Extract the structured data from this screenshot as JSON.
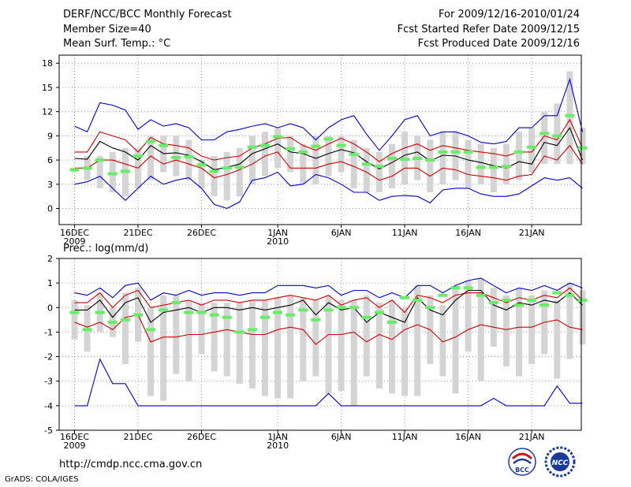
{
  "header": {
    "title": "DERF/NCC/BCC Monthly Forecast",
    "member_size": "Member Size=40",
    "variable": "Mean Surf. Temp.: °C",
    "fcst_period": "For 2009/12/16-2010/01/24",
    "fcst_started": "Fcst Started Refer Date 2009/12/15",
    "fcst_produced": "Fcst Produced Date 2009/12/16"
  },
  "footer": {
    "url": "http://cmdp.ncc.cma.gov.cn",
    "grads": "GrADS: COLA/IGES",
    "logo_bcc": "BCC",
    "logo_ncc": "NCC"
  },
  "colors": {
    "mean": "#000000",
    "upper_lower": "#cc0000",
    "extreme": "#0000cc",
    "range_bar": "#d4d4d4",
    "marker": "#66ee66"
  },
  "chart_data": [
    {
      "type": "line",
      "title": "Mean Surf. Temp.: °C",
      "ylim": [
        -2,
        19
      ],
      "yticks": [
        0,
        3,
        6,
        9,
        12,
        15,
        18
      ],
      "grid": true,
      "xtick_labels": [
        {
          "day": 1,
          "label": "16DEC",
          "sub": "2009"
        },
        {
          "day": 6,
          "label": "21DEC",
          "sub": ""
        },
        {
          "day": 11,
          "label": "26DEC",
          "sub": ""
        },
        {
          "day": 17,
          "label": "1JAN",
          "sub": "2010"
        },
        {
          "day": 22,
          "label": "6JAN",
          "sub": ""
        },
        {
          "day": 27,
          "label": "11JAN",
          "sub": ""
        },
        {
          "day": 32,
          "label": "16JAN",
          "sub": ""
        },
        {
          "day": 37,
          "label": "21JAN",
          "sub": ""
        }
      ],
      "series": [
        {
          "name": "max",
          "values": [
            10.2,
            9.5,
            13.1,
            12.8,
            12.2,
            9.8,
            11.0,
            10.2,
            10.5,
            10.0,
            8.5,
            8.5,
            9.5,
            9.8,
            10.2,
            10.5,
            10.0,
            10.5,
            10.0,
            8.5,
            10.0,
            11.0,
            11.5,
            9.2,
            7.2,
            9.0,
            11.0,
            11.5,
            9.0,
            9.5,
            9.5,
            9.0,
            8.2,
            8.0,
            8.3,
            10.0,
            10.0,
            11.5,
            11.5,
            16.0,
            9.5
          ]
        },
        {
          "name": "upper",
          "values": [
            7.0,
            7.0,
            9.5,
            9.0,
            8.5,
            7.0,
            8.8,
            8.0,
            7.8,
            7.5,
            6.5,
            6.0,
            6.3,
            6.5,
            7.5,
            8.0,
            8.7,
            8.8,
            7.8,
            7.2,
            8.0,
            8.7,
            8.0,
            7.0,
            5.8,
            6.8,
            7.5,
            8.0,
            7.2,
            7.8,
            7.5,
            7.2,
            7.0,
            6.8,
            6.5,
            7.0,
            7.0,
            9.0,
            8.5,
            11.0,
            7.5
          ]
        },
        {
          "name": "mean",
          "values": [
            6.2,
            6.1,
            8.3,
            7.5,
            7.0,
            6.0,
            7.8,
            6.8,
            6.9,
            6.6,
            5.8,
            4.8,
            5.1,
            5.5,
            6.8,
            7.4,
            8.0,
            7.0,
            6.8,
            6.2,
            6.8,
            7.3,
            6.9,
            5.8,
            4.9,
            5.7,
            6.6,
            7.0,
            5.9,
            6.6,
            6.5,
            6.0,
            5.7,
            5.3,
            5.0,
            5.8,
            5.5,
            8.2,
            7.8,
            10.0,
            6.0
          ]
        },
        {
          "name": "lower",
          "values": [
            5.0,
            5.0,
            6.0,
            6.0,
            5.5,
            5.0,
            6.5,
            5.5,
            6.0,
            5.5,
            5.0,
            3.8,
            4.2,
            4.8,
            5.5,
            6.5,
            7.0,
            5.0,
            5.0,
            5.0,
            5.5,
            5.8,
            5.2,
            4.5,
            3.5,
            4.0,
            5.0,
            5.0,
            4.0,
            5.0,
            4.8,
            4.2,
            4.0,
            3.8,
            3.5,
            4.0,
            4.2,
            6.5,
            6.0,
            7.8,
            5.5
          ]
        },
        {
          "name": "min",
          "values": [
            3.0,
            3.3,
            4.0,
            2.5,
            1.0,
            2.5,
            4.0,
            3.0,
            3.5,
            3.8,
            2.5,
            0.5,
            0.0,
            0.8,
            3.5,
            3.8,
            4.5,
            2.8,
            3.0,
            4.2,
            3.8,
            3.0,
            2.0,
            2.0,
            1.0,
            1.5,
            1.6,
            1.5,
            0.7,
            2.3,
            2.5,
            2.5,
            1.8,
            1.5,
            1.5,
            1.8,
            2.8,
            3.8,
            3.5,
            3.8,
            2.5
          ]
        },
        {
          "name": "range_bar_top",
          "values": [
            5.0,
            6.5,
            6.5,
            7.0,
            7.5,
            7.5,
            9.0,
            9.0,
            9.0,
            8.5,
            6.0,
            6.5,
            7.0,
            7.5,
            9.0,
            9.5,
            10.0,
            9.0,
            8.0,
            9.0,
            9.0,
            9.0,
            8.5,
            7.5,
            7.0,
            8.0,
            9.5,
            9.0,
            8.5,
            9.5,
            9.5,
            8.5,
            8.0,
            7.5,
            8.0,
            9.5,
            10.0,
            12.0,
            13.0,
            17.0,
            10.0
          ]
        },
        {
          "name": "range_bar_bottom",
          "values": [
            4.5,
            3.5,
            2.5,
            2.0,
            1.5,
            2.5,
            3.5,
            4.5,
            4.0,
            3.5,
            2.5,
            1.5,
            1.0,
            1.5,
            3.0,
            4.0,
            5.0,
            4.5,
            3.0,
            3.0,
            4.0,
            4.5,
            2.5,
            2.0,
            2.0,
            2.5,
            3.0,
            3.5,
            2.0,
            3.0,
            3.5,
            2.5,
            3.0,
            2.0,
            3.0,
            3.5,
            4.5,
            5.5,
            5.5,
            5.5,
            5.5
          ]
        },
        {
          "name": "marker",
          "values": [
            4.8,
            5.0,
            6.0,
            4.3,
            4.6,
            6.5,
            8.3,
            7.8,
            6.3,
            6.4,
            5.4,
            4.6,
            5.0,
            5.1,
            7.6,
            7.8,
            8.9,
            7.4,
            7.0,
            7.7,
            8.6,
            7.8,
            6.7,
            5.5,
            5.2,
            6.2,
            6.1,
            6.2,
            6.0,
            7.0,
            7.0,
            7.0,
            5.1,
            5.1,
            5.2,
            7.0,
            7.6,
            9.3,
            9.0,
            11.5,
            7.5
          ]
        }
      ]
    },
    {
      "type": "line",
      "title": "Prec.: log(mm/d)",
      "ylim": [
        -5,
        2
      ],
      "yticks": [
        -5,
        -4,
        -3,
        -2,
        -1,
        0,
        1,
        2
      ],
      "grid": true,
      "xtick_labels": [
        {
          "day": 1,
          "label": "16DEC",
          "sub": "2009"
        },
        {
          "day": 6,
          "label": "21DEC",
          "sub": ""
        },
        {
          "day": 11,
          "label": "26DEC",
          "sub": ""
        },
        {
          "day": 17,
          "label": "1JAN",
          "sub": "2010"
        },
        {
          "day": 22,
          "label": "6JAN",
          "sub": ""
        },
        {
          "day": 27,
          "label": "11JAN",
          "sub": ""
        },
        {
          "day": 32,
          "label": "16JAN",
          "sub": ""
        },
        {
          "day": 37,
          "label": "21JAN",
          "sub": ""
        }
      ],
      "series": [
        {
          "name": "max",
          "values": [
            0.6,
            0.5,
            0.8,
            0.4,
            0.9,
            1.0,
            0.3,
            0.6,
            0.5,
            0.7,
            0.5,
            0.6,
            0.6,
            0.5,
            0.6,
            0.6,
            0.9,
            0.9,
            0.9,
            0.8,
            0.9,
            0.5,
            0.7,
            0.7,
            0.4,
            0.6,
            0.4,
            0.9,
            0.9,
            0.6,
            0.9,
            1.1,
            1.2,
            0.9,
            0.6,
            0.8,
            0.7,
            0.9,
            0.7,
            1.0,
            0.8
          ]
        },
        {
          "name": "upper",
          "values": [
            0.2,
            0.2,
            0.6,
            0.0,
            0.5,
            0.7,
            0.0,
            0.1,
            0.2,
            0.3,
            0.1,
            0.3,
            0.3,
            0.2,
            0.3,
            0.3,
            0.4,
            0.5,
            0.4,
            0.3,
            0.5,
            0.1,
            0.3,
            0.4,
            0.0,
            0.3,
            -0.2,
            0.5,
            0.4,
            0.2,
            0.5,
            0.6,
            0.6,
            0.4,
            0.2,
            0.4,
            0.3,
            0.5,
            0.4,
            0.8,
            0.3
          ]
        },
        {
          "name": "mean",
          "values": [
            -0.1,
            -0.1,
            0.3,
            -0.4,
            0.2,
            0.4,
            -0.6,
            -0.2,
            -0.1,
            0.0,
            -0.2,
            0.0,
            0.0,
            -0.1,
            0.0,
            -0.1,
            0.0,
            0.1,
            0.3,
            -0.3,
            0.2,
            -0.1,
            0.0,
            -0.6,
            -0.2,
            -0.4,
            -0.6,
            0.4,
            -0.1,
            -0.3,
            0.3,
            0.7,
            0.7,
            0.1,
            -0.1,
            0.2,
            0.1,
            0.3,
            0.2,
            0.6,
            0.1
          ]
        },
        {
          "name": "lower",
          "values": [
            -0.6,
            -0.8,
            -0.6,
            -0.9,
            -0.4,
            -0.3,
            -1.4,
            -1.2,
            -1.2,
            -1.1,
            -1.1,
            -1.0,
            -0.9,
            -1.0,
            -1.1,
            -1.1,
            -0.9,
            -0.8,
            -0.9,
            -1.5,
            -1.1,
            -1.1,
            -1.0,
            -1.4,
            -1.1,
            -1.3,
            -0.9,
            -0.7,
            -0.9,
            -1.4,
            -1.2,
            -0.9,
            -0.7,
            -0.8,
            -0.9,
            -0.8,
            -0.8,
            -0.6,
            -0.5,
            -0.8,
            -0.9
          ]
        },
        {
          "name": "min",
          "values": [
            -4.0,
            -4.0,
            -2.1,
            -3.1,
            -3.1,
            -4.0,
            -4.0,
            -4.0,
            -4.0,
            -4.0,
            -4.0,
            -4.0,
            -4.0,
            -4.0,
            -4.0,
            -4.0,
            -4.0,
            -4.0,
            -4.0,
            -4.0,
            -3.5,
            -4.0,
            -4.0,
            -4.0,
            -4.0,
            -4.0,
            -4.0,
            -4.0,
            -4.0,
            -4.0,
            -4.0,
            -4.0,
            -4.0,
            -3.7,
            -4.0,
            -4.0,
            -4.0,
            -4.0,
            -3.2,
            -3.9,
            -3.9
          ]
        },
        {
          "name": "range_bar_top",
          "values": [
            0.3,
            0.1,
            0.6,
            0.0,
            0.6,
            0.8,
            0.0,
            0.5,
            0.5,
            0.3,
            0.2,
            0.2,
            0.2,
            0.2,
            0.3,
            0.3,
            0.4,
            0.5,
            0.4,
            0.3,
            0.5,
            0.3,
            0.3,
            0.5,
            0.2,
            0.3,
            0.0,
            0.9,
            0.5,
            0.1,
            0.9,
            1.1,
            1.2,
            0.8,
            0.5,
            0.8,
            0.5,
            0.7,
            0.3,
            1.0,
            0.7
          ]
        },
        {
          "name": "range_bar_bottom",
          "values": [
            -1.3,
            -1.8,
            -1.0,
            -1.2,
            -2.3,
            -1.4,
            -3.6,
            -3.8,
            -2.7,
            -3.0,
            -1.9,
            -2.6,
            -2.8,
            -3.1,
            -3.3,
            -3.6,
            -3.7,
            -3.7,
            -3.0,
            -2.8,
            -3.5,
            -3.4,
            -4.0,
            -2.8,
            -3.3,
            -3.5,
            -3.6,
            -3.6,
            -2.3,
            -2.8,
            -3.5,
            -1.8,
            -3.0,
            -1.6,
            -2.4,
            -2.8,
            -2.3,
            -1.9,
            -2.9,
            -2.1,
            -1.5
          ]
        },
        {
          "name": "marker",
          "values": [
            -0.2,
            -0.9,
            -0.2,
            -0.6,
            -0.5,
            -0.3,
            -0.9,
            -0.1,
            0.2,
            -0.2,
            -0.2,
            -0.3,
            -0.4,
            -1.0,
            -0.9,
            -0.4,
            -0.2,
            -0.3,
            -0.1,
            -0.5,
            -0.1,
            0.0,
            0.0,
            -0.4,
            -0.2,
            -0.6,
            0.4,
            0.3,
            0.0,
            0.5,
            0.8,
            0.8,
            0.5,
            0.2,
            0.3,
            0.1,
            0.3,
            0.1,
            0.6,
            0.5,
            0.3
          ]
        }
      ]
    }
  ]
}
